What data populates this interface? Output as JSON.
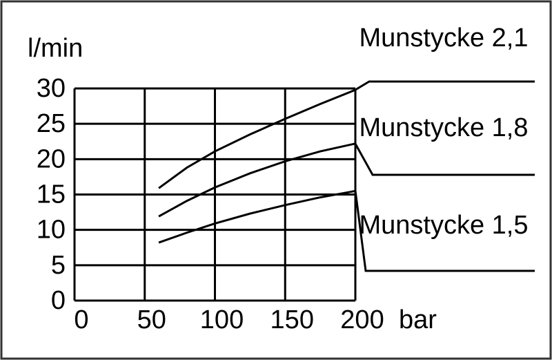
{
  "chart_data": {
    "type": "line",
    "y_label": "l/min",
    "x_label": "bar",
    "xlim": [
      0,
      200
    ],
    "xticks": [
      0,
      50,
      100,
      150,
      200
    ],
    "ylim": [
      0,
      30
    ],
    "yticks": [
      0,
      5,
      10,
      15,
      20,
      25,
      30
    ],
    "grid": true,
    "series": [
      {
        "name": "Munstycke 2,1",
        "color": "#000000",
        "x": [
          60,
          80,
          100,
          125,
          150,
          175,
          200
        ],
        "values": [
          15.9,
          18.8,
          21.1,
          23.5,
          25.7,
          27.8,
          29.8
        ]
      },
      {
        "name": "Munstycke 1,8",
        "color": "#000000",
        "x": [
          60,
          80,
          100,
          125,
          150,
          175,
          200
        ],
        "values": [
          11.9,
          14.1,
          16.0,
          18.0,
          19.7,
          21.1,
          22.2
        ]
      },
      {
        "name": "Munstycke 1,5",
        "color": "#000000",
        "x": [
          60,
          80,
          100,
          125,
          150,
          175,
          200
        ],
        "values": [
          8.2,
          9.6,
          10.9,
          12.3,
          13.5,
          14.6,
          15.5
        ]
      }
    ]
  }
}
